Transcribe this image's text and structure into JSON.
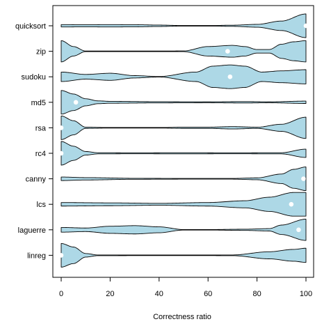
{
  "chart_data": {
    "type": "violin",
    "title": "",
    "xlabel": "Correctness ratio",
    "ylabel": "",
    "xlim": [
      0,
      100
    ],
    "xticks": [
      0,
      20,
      40,
      60,
      80,
      100
    ],
    "grid": false,
    "legend": "none",
    "colors": {
      "fill": "#add8e6",
      "outline": "#000000",
      "median": "#ffffff"
    },
    "categories": [
      "quicksort",
      "zip",
      "sudoku",
      "md5",
      "rsa",
      "rc4",
      "canny",
      "lcs",
      "laguerre",
      "linreg"
    ],
    "series": [
      {
        "category": "quicksort",
        "median": 100,
        "density": [
          [
            0,
            0.1
          ],
          [
            10,
            0.09
          ],
          [
            20,
            0.1
          ],
          [
            30,
            0.09
          ],
          [
            40,
            0.06
          ],
          [
            50,
            0.02
          ],
          [
            60,
            0.02
          ],
          [
            70,
            0.05
          ],
          [
            80,
            0.12
          ],
          [
            90,
            0.4
          ],
          [
            100,
            1.0
          ]
        ]
      },
      {
        "category": "zip",
        "median": 68,
        "density": [
          [
            0,
            0.9
          ],
          [
            5,
            0.4
          ],
          [
            10,
            0.02
          ],
          [
            20,
            0.02
          ],
          [
            40,
            0.02
          ],
          [
            50,
            0.03
          ],
          [
            60,
            0.4
          ],
          [
            70,
            0.5
          ],
          [
            75,
            0.4
          ],
          [
            80,
            0.15
          ],
          [
            85,
            0.15
          ],
          [
            90,
            0.6
          ],
          [
            95,
            0.8
          ],
          [
            100,
            0.9
          ]
        ]
      },
      {
        "category": "sudoku",
        "median": 69,
        "density": [
          [
            0,
            0.4
          ],
          [
            10,
            0.2
          ],
          [
            20,
            0.3
          ],
          [
            30,
            0.1
          ],
          [
            40,
            0.02
          ],
          [
            55,
            0.4
          ],
          [
            62,
            0.9
          ],
          [
            69,
            1.0
          ],
          [
            75,
            0.9
          ],
          [
            82,
            0.4
          ],
          [
            90,
            0.5
          ],
          [
            100,
            0.6
          ]
        ]
      },
      {
        "category": "md5",
        "median": 6,
        "density": [
          [
            0,
            1.0
          ],
          [
            5,
            0.7
          ],
          [
            10,
            0.3
          ],
          [
            15,
            0.12
          ],
          [
            20,
            0.08
          ],
          [
            40,
            0.05
          ],
          [
            60,
            0.04
          ],
          [
            75,
            0.06
          ],
          [
            85,
            0.04
          ],
          [
            100,
            0.1
          ]
        ]
      },
      {
        "category": "rsa",
        "median": 0,
        "density": [
          [
            0,
            1.0
          ],
          [
            5,
            0.6
          ],
          [
            10,
            0.05
          ],
          [
            20,
            0.02
          ],
          [
            40,
            0.02
          ],
          [
            50,
            0.05
          ],
          [
            60,
            0.05
          ],
          [
            70,
            0.1
          ],
          [
            80,
            0.05
          ],
          [
            90,
            0.3
          ],
          [
            100,
            0.9
          ]
        ]
      },
      {
        "category": "rc4",
        "median": 0,
        "density": [
          [
            0,
            1.0
          ],
          [
            5,
            0.6
          ],
          [
            10,
            0.15
          ],
          [
            15,
            0.05
          ],
          [
            30,
            0.04
          ],
          [
            50,
            0.05
          ],
          [
            70,
            0.04
          ],
          [
            90,
            0.05
          ],
          [
            100,
            0.35
          ]
        ]
      },
      {
        "category": "canny",
        "median": 99,
        "density": [
          [
            0,
            0.15
          ],
          [
            10,
            0.1
          ],
          [
            30,
            0.04
          ],
          [
            50,
            0.03
          ],
          [
            70,
            0.03
          ],
          [
            80,
            0.08
          ],
          [
            90,
            0.4
          ],
          [
            95,
            0.8
          ],
          [
            100,
            1.0
          ]
        ]
      },
      {
        "category": "lcs",
        "median": 94,
        "density": [
          [
            0,
            0.15
          ],
          [
            20,
            0.12
          ],
          [
            40,
            0.08
          ],
          [
            60,
            0.15
          ],
          [
            75,
            0.3
          ],
          [
            85,
            0.6
          ],
          [
            95,
            1.0
          ],
          [
            100,
            1.0
          ]
        ]
      },
      {
        "category": "laguerre",
        "median": 97,
        "density": [
          [
            0,
            0.2
          ],
          [
            10,
            0.15
          ],
          [
            20,
            0.3
          ],
          [
            30,
            0.35
          ],
          [
            40,
            0.25
          ],
          [
            50,
            0.02
          ],
          [
            60,
            0.02
          ],
          [
            75,
            0.05
          ],
          [
            85,
            0.1
          ],
          [
            90,
            0.4
          ],
          [
            100,
            0.9
          ]
        ]
      },
      {
        "category": "linreg",
        "median": 0,
        "density": [
          [
            0,
            1.0
          ],
          [
            5,
            0.7
          ],
          [
            10,
            0.15
          ],
          [
            15,
            0.03
          ],
          [
            50,
            0.02
          ],
          [
            70,
            0.03
          ],
          [
            85,
            0.3
          ],
          [
            95,
            0.5
          ],
          [
            100,
            0.6
          ]
        ]
      }
    ]
  }
}
